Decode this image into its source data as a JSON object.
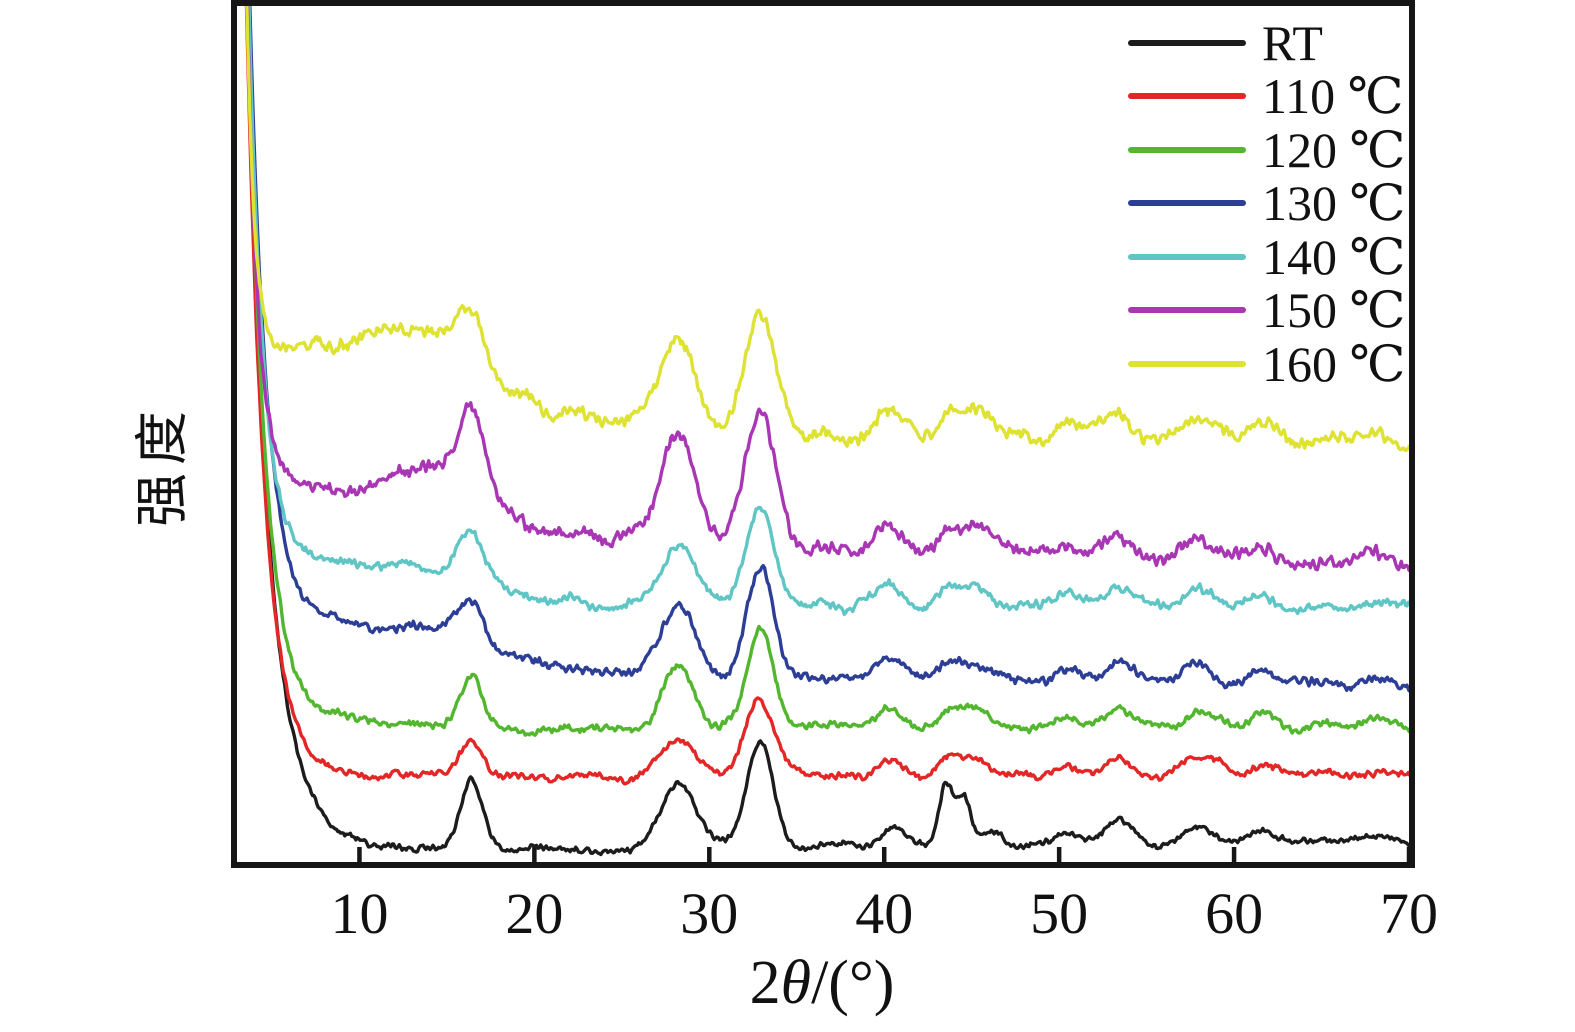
{
  "figure": {
    "background": "#ffffff",
    "frame_color": "#161616",
    "description": "XRD patterns (powder X-ray diffraction) of samples treated at different temperatures, curves offset vertically"
  },
  "axes": {
    "xlabel_full": "2θ/(°)",
    "xlabel_parts": {
      "prefix": "2",
      "theta": "θ",
      "suffix": "/(°)"
    },
    "ylabel": "强度",
    "x_range": [
      3,
      70
    ],
    "x_ticks": [
      10,
      20,
      30,
      40,
      50,
      60,
      70
    ],
    "y_ticks": "none (arbitrary intensity units)"
  },
  "chart_data": {
    "type": "line",
    "title": "",
    "xlabel": "2θ/(°)",
    "ylabel": "强度",
    "x_range": [
      3,
      70
    ],
    "x_step": 0.08,
    "grid": false,
    "legend_position": "top-right inside plot",
    "intensity_units": "arbitrary, normalized 0-100 of plot height; curves are vertically offset stacks",
    "main_peak_positions_2theta_deg": [
      16.4,
      28.2,
      32.9
    ],
    "minor_peak_positions_2theta_deg": [
      40.4,
      43.6,
      44.9,
      50.5,
      53.4,
      57.9,
      61.6,
      64.9,
      68.3
    ],
    "rt_only_sharp_doublet_2theta_deg": [
      43.5,
      44.5
    ],
    "low_angle_background": "all curves rise steeply below 2θ≈6° and are clipped at the plot top",
    "peak_format": "[center_2theta_deg, height_intensity_units, fwhm_deg]",
    "baseline_format": "[2theta_deg, intensity_units]",
    "series": [
      {
        "name": "RT",
        "label": "RT",
        "color": "#1c1c1c",
        "seed": 3,
        "noise": 0.45,
        "spike": {
          "amp": 150,
          "tau": 1.3
        },
        "baseline": [
          [
            3,
            2.2
          ],
          [
            8,
            2.0
          ],
          [
            12,
            1.7
          ],
          [
            16,
            1.6
          ],
          [
            20,
            1.45
          ],
          [
            24,
            1.4
          ],
          [
            28,
            1.5
          ],
          [
            33,
            1.7
          ],
          [
            40,
            1.9
          ],
          [
            48,
            1.9
          ],
          [
            56,
            2.0
          ],
          [
            70,
            2.0
          ]
        ],
        "peaks": [
          [
            16.4,
            7.8,
            1.5
          ],
          [
            28.2,
            7.8,
            2.3
          ],
          [
            32.9,
            12.3,
            1.8
          ],
          [
            40.5,
            2.2,
            1.5
          ],
          [
            43.5,
            7.2,
            0.9
          ],
          [
            44.5,
            5.6,
            1.0
          ],
          [
            46.2,
            1.4,
            1.2
          ],
          [
            50.4,
            1.5,
            1.5
          ],
          [
            53.4,
            2.6,
            1.9
          ],
          [
            57.9,
            1.9,
            2.1
          ],
          [
            61.6,
            1.2,
            1.8
          ],
          [
            64.9,
            0.7,
            2.0
          ],
          [
            68.3,
            1.1,
            2.4
          ]
        ]
      },
      {
        "name": "110C",
        "label": "110 ℃",
        "color": "#e32726",
        "seed": 7,
        "noise": 0.5,
        "spike": {
          "amp": 150,
          "tau": 1.05
        },
        "baseline": [
          [
            3,
            10.6
          ],
          [
            8,
            10.3
          ],
          [
            12,
            10.1
          ],
          [
            16,
            10.0
          ],
          [
            20,
            9.9
          ],
          [
            24,
            9.8
          ],
          [
            28,
            9.9
          ],
          [
            33,
            10.1
          ],
          [
            40,
            10.2
          ],
          [
            48,
            9.9
          ],
          [
            56,
            9.8
          ],
          [
            64,
            9.7
          ],
          [
            70,
            9.6
          ]
        ],
        "peaks": [
          [
            16.4,
            3.6,
            1.7
          ],
          [
            28.2,
            4.7,
            2.3
          ],
          [
            32.9,
            9.0,
            1.9
          ],
          [
            40.4,
            1.8,
            1.8
          ],
          [
            43.6,
            1.1,
            1.2
          ],
          [
            44.9,
            2.0,
            2.4
          ],
          [
            50.5,
            1.2,
            1.6
          ],
          [
            53.4,
            2.2,
            2.0
          ],
          [
            57.9,
            2.1,
            2.2
          ],
          [
            59.4,
            0.9,
            1.4
          ],
          [
            61.6,
            1.5,
            1.9
          ],
          [
            64.9,
            0.8,
            2.0
          ],
          [
            68.3,
            1.2,
            2.6
          ]
        ]
      },
      {
        "name": "120C",
        "label": "120 ℃",
        "color": "#53b62f",
        "seed": 11,
        "noise": 0.55,
        "spike": {
          "amp": 150,
          "tau": 1.0
        },
        "baseline": [
          [
            3,
            18.5
          ],
          [
            7,
            17.0
          ],
          [
            10,
            16.2
          ],
          [
            14,
            15.7
          ],
          [
            18,
            15.5
          ],
          [
            24,
            15.3
          ],
          [
            30,
            15.4
          ],
          [
            36,
            15.6
          ],
          [
            44,
            15.6
          ],
          [
            52,
            15.4
          ],
          [
            60,
            15.3
          ],
          [
            70,
            15.2
          ]
        ],
        "peaks": [
          [
            16.4,
            6.2,
            1.6
          ],
          [
            28.2,
            7.2,
            2.2
          ],
          [
            32.9,
            11.8,
            1.8
          ],
          [
            40.4,
            2.1,
            1.8
          ],
          [
            43.6,
            1.2,
            1.2
          ],
          [
            44.9,
            2.4,
            2.4
          ],
          [
            50.5,
            1.3,
            1.6
          ],
          [
            53.4,
            2.4,
            2.0
          ],
          [
            57.9,
            2.3,
            2.2
          ],
          [
            59.4,
            1.0,
            1.4
          ],
          [
            61.6,
            1.7,
            1.9
          ],
          [
            64.9,
            0.9,
            2.0
          ],
          [
            68.3,
            1.3,
            2.6
          ]
        ]
      },
      {
        "name": "130C",
        "label": "130 ℃",
        "color": "#2c3e96",
        "seed": 13,
        "noise": 0.65,
        "spike": {
          "amp": 150,
          "tau": 0.95
        },
        "baseline": [
          [
            3,
            31
          ],
          [
            6,
            29
          ],
          [
            9,
            27.8
          ],
          [
            12,
            27.3
          ],
          [
            15,
            27.0
          ],
          [
            18,
            24.8
          ],
          [
            22,
            22.5
          ],
          [
            27,
            21.8
          ],
          [
            33,
            21.4
          ],
          [
            40,
            21.2
          ],
          [
            48,
            20.9
          ],
          [
            56,
            20.6
          ],
          [
            64,
            20.3
          ],
          [
            70,
            20.1
          ]
        ],
        "peaks": [
          [
            16.4,
            4.2,
            1.7
          ],
          [
            28.2,
            8.2,
            2.3
          ],
          [
            32.9,
            12.6,
            1.9
          ],
          [
            40.4,
            2.3,
            1.9
          ],
          [
            43.6,
            1.3,
            1.2
          ],
          [
            44.9,
            2.6,
            2.5
          ],
          [
            50.5,
            1.4,
            1.7
          ],
          [
            53.4,
            2.5,
            2.1
          ],
          [
            57.9,
            2.4,
            2.3
          ],
          [
            61.6,
            1.8,
            2.0
          ],
          [
            64.9,
            1.0,
            2.0
          ],
          [
            68.3,
            1.4,
            2.6
          ]
        ]
      },
      {
        "name": "140C",
        "label": "140 ℃",
        "color": "#5fc6c5",
        "seed": 17,
        "noise": 0.65,
        "spike": {
          "amp": 150,
          "tau": 0.8
        },
        "baseline": [
          [
            3,
            36.2
          ],
          [
            6,
            35.2
          ],
          [
            10,
            34.7
          ],
          [
            14,
            34.3
          ],
          [
            17,
            32.5
          ],
          [
            20,
            30.8
          ],
          [
            24,
            30.0
          ],
          [
            30,
            29.7
          ],
          [
            38,
            29.8
          ],
          [
            46,
            29.7
          ],
          [
            54,
            29.5
          ],
          [
            62,
            29.4
          ],
          [
            70,
            29.2
          ]
        ],
        "peaks": [
          [
            16.4,
            5.4,
            1.7
          ],
          [
            28.2,
            7.3,
            2.3
          ],
          [
            32.9,
            12.0,
            1.9
          ],
          [
            40.4,
            2.3,
            1.9
          ],
          [
            43.6,
            1.3,
            1.2
          ],
          [
            44.9,
            2.6,
            2.5
          ],
          [
            50.5,
            1.4,
            1.7
          ],
          [
            53.4,
            2.5,
            2.1
          ],
          [
            57.9,
            2.4,
            2.3
          ],
          [
            61.6,
            1.8,
            2.0
          ],
          [
            64.9,
            1.0,
            2.0
          ],
          [
            68.3,
            1.4,
            2.6
          ]
        ]
      },
      {
        "name": "150C",
        "label": "150 ℃",
        "color": "#a936b4",
        "seed": 19,
        "noise": 0.95,
        "spike": {
          "amp": 150,
          "tau": 0.6
        },
        "baseline": [
          [
            3,
            44.6
          ],
          [
            6,
            43.9
          ],
          [
            9,
            43.3
          ],
          [
            12,
            43.3
          ],
          [
            16,
            42.4
          ],
          [
            20,
            39.5
          ],
          [
            24,
            37.9
          ],
          [
            28,
            37.3
          ],
          [
            33,
            36.9
          ],
          [
            38,
            36.5
          ],
          [
            44,
            36.2
          ],
          [
            50,
            35.7
          ],
          [
            56,
            35.2
          ],
          [
            63,
            34.6
          ],
          [
            70,
            34.0
          ]
        ],
        "peaks": [
          [
            13.6,
            3.4,
            3.2
          ],
          [
            16.4,
            10.8,
            1.8
          ],
          [
            28.2,
            12.0,
            2.5
          ],
          [
            32.9,
            15.3,
            2.1
          ],
          [
            40.4,
            2.6,
            2.1
          ],
          [
            43.6,
            1.4,
            1.3
          ],
          [
            44.9,
            3.0,
            2.7
          ],
          [
            50.5,
            1.5,
            1.8
          ],
          [
            53.4,
            2.7,
            2.2
          ],
          [
            57.9,
            2.7,
            2.4
          ],
          [
            61.6,
            2.1,
            2.1
          ],
          [
            64.9,
            1.1,
            2.0
          ],
          [
            68.3,
            1.5,
            2.7
          ]
        ]
      },
      {
        "name": "160C",
        "label": "160 ℃",
        "color": "#dde233",
        "seed": 23,
        "noise": 0.95,
        "spike": {
          "amp": 150,
          "tau": 0.42
        },
        "baseline": [
          [
            3,
            60.8
          ],
          [
            6,
            60.2
          ],
          [
            9,
            60.0
          ],
          [
            12,
            60.3
          ],
          [
            15,
            58.8
          ],
          [
            18,
            55.5
          ],
          [
            21,
            52.5
          ],
          [
            24,
            51.0
          ],
          [
            28,
            50.4
          ],
          [
            33,
            50.0
          ],
          [
            38,
            49.8
          ],
          [
            44,
            49.6
          ],
          [
            50,
            49.3
          ],
          [
            56,
            49.0
          ],
          [
            63,
            48.7
          ],
          [
            70,
            48.3
          ]
        ],
        "peaks": [
          [
            11.0,
            1.6,
            3.0
          ],
          [
            13.8,
            2.0,
            2.6
          ],
          [
            16.4,
            7.8,
            1.9
          ],
          [
            28.2,
            10.2,
            2.4
          ],
          [
            32.9,
            14.3,
            2.0
          ],
          [
            40.4,
            2.8,
            2.2
          ],
          [
            43.6,
            1.5,
            1.3
          ],
          [
            44.9,
            3.2,
            2.8
          ],
          [
            50.5,
            1.7,
            1.9
          ],
          [
            53.4,
            2.9,
            2.3
          ],
          [
            57.9,
            2.9,
            2.5
          ],
          [
            61.6,
            2.3,
            2.2
          ],
          [
            64.9,
            1.2,
            2.1
          ],
          [
            68.3,
            1.6,
            2.8
          ]
        ]
      }
    ]
  },
  "legend": {
    "items": [
      {
        "label": "RT",
        "color": "#1c1c1c"
      },
      {
        "label": "110 ℃",
        "color": "#e32726"
      },
      {
        "label": "120 ℃",
        "color": "#53b62f"
      },
      {
        "label": "130 ℃",
        "color": "#2c3e96"
      },
      {
        "label": "140 ℃",
        "color": "#5fc6c5"
      },
      {
        "label": "150 ℃",
        "color": "#a936b4"
      },
      {
        "label": "160 ℃",
        "color": "#dde233"
      }
    ]
  }
}
